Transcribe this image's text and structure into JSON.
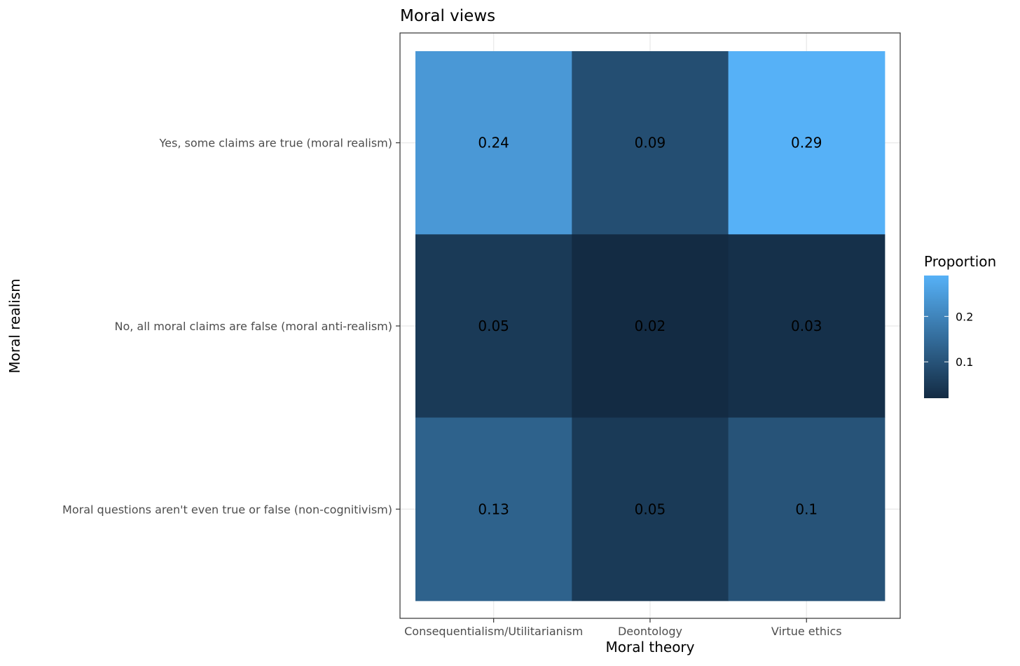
{
  "chart_data": {
    "type": "heatmap",
    "title": "Moral views",
    "xlabel": "Moral theory",
    "ylabel": "Moral realism",
    "x_categories": [
      "Consequentialism/Utilitarianism",
      "Deontology",
      "Virtue ethics"
    ],
    "y_categories": [
      "Yes, some claims are true (moral realism)",
      "No, all moral claims are false (moral anti-realism)",
      "Moral questions aren't even true or false (non-cognitivism)"
    ],
    "values": [
      [
        0.24,
        0.09,
        0.29
      ],
      [
        0.05,
        0.02,
        0.03
      ],
      [
        0.13,
        0.05,
        0.1
      ]
    ],
    "cell_labels": [
      [
        "0.24",
        "0.09",
        "0.29"
      ],
      [
        "0.05",
        "0.02",
        "0.03"
      ],
      [
        "0.13",
        "0.05",
        "0.1"
      ]
    ],
    "legend": {
      "title": "Proportion",
      "position": "right",
      "ticks": [
        0.1,
        0.2
      ],
      "tick_labels": [
        "0.1",
        "0.2"
      ],
      "range": [
        0.02,
        0.29
      ],
      "low_color": "#132B43",
      "high_color": "#56B1F7"
    },
    "grid": true
  }
}
